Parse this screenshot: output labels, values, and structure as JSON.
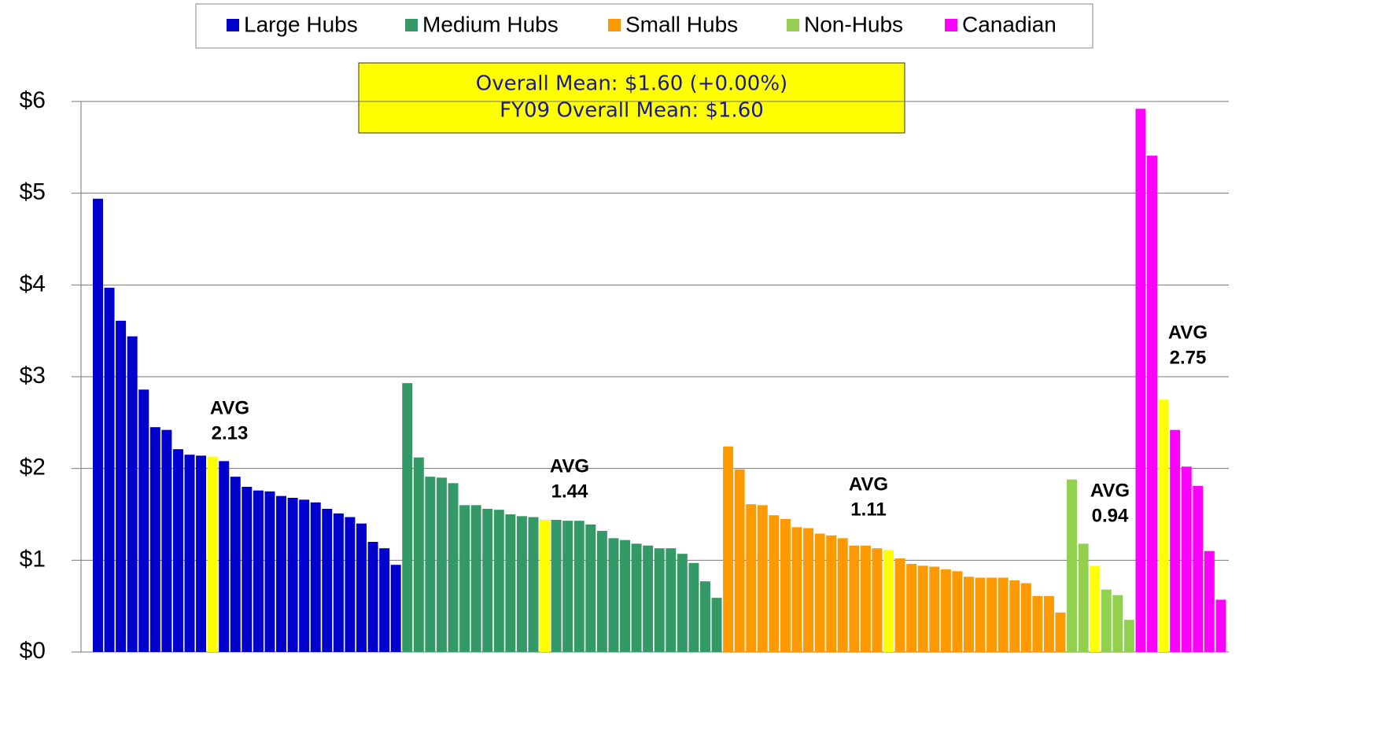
{
  "chart_data": {
    "type": "bar",
    "annotations": [
      "Overall Mean: $1.60 (+0.00%)",
      "FY09 Overall Mean: $1.60"
    ],
    "average_label": "AVG",
    "average_color": "#ffff00",
    "ylim": [
      0,
      6
    ],
    "yticks": [
      {
        "value": 0,
        "label": "$0"
      },
      {
        "value": 1,
        "label": "$1"
      },
      {
        "value": 2,
        "label": "$2"
      },
      {
        "value": 3,
        "label": "$3"
      },
      {
        "value": 4,
        "label": "$4"
      },
      {
        "value": 5,
        "label": "$5"
      },
      {
        "value": 6,
        "label": "$6"
      }
    ],
    "grid": true,
    "series": [
      {
        "name": "Large Hubs",
        "color": "#0000cc",
        "average": 2.13,
        "values": [
          4.94,
          3.97,
          3.61,
          3.44,
          2.86,
          2.45,
          2.42,
          2.21,
          2.15,
          2.14,
          2.08,
          1.91,
          1.8,
          1.76,
          1.75,
          1.7,
          1.68,
          1.66,
          1.63,
          1.56,
          1.51,
          1.47,
          1.4,
          1.2,
          1.13,
          0.95
        ]
      },
      {
        "name": "Medium Hubs",
        "color": "#339966",
        "average": 1.44,
        "values": [
          2.93,
          2.12,
          1.91,
          1.9,
          1.84,
          1.6,
          1.6,
          1.56,
          1.55,
          1.5,
          1.48,
          1.47,
          1.44,
          1.43,
          1.43,
          1.39,
          1.32,
          1.24,
          1.22,
          1.18,
          1.16,
          1.13,
          1.13,
          1.07,
          0.97,
          0.77,
          0.59
        ]
      },
      {
        "name": "Small Hubs",
        "color": "#ff9900",
        "average": 1.11,
        "values": [
          2.24,
          1.99,
          1.61,
          1.6,
          1.49,
          1.45,
          1.36,
          1.35,
          1.29,
          1.27,
          1.24,
          1.16,
          1.16,
          1.13,
          1.02,
          0.96,
          0.94,
          0.93,
          0.9,
          0.88,
          0.82,
          0.81,
          0.81,
          0.81,
          0.78,
          0.75,
          0.61,
          0.61,
          0.43
        ]
      },
      {
        "name": "Non-Hubs",
        "color": "#92d050",
        "average": 0.94,
        "values": [
          1.88,
          1.18,
          0.68,
          0.62,
          0.35
        ]
      },
      {
        "name": "Canadian",
        "color": "#ff00ff",
        "average": 2.75,
        "values": [
          5.92,
          5.41,
          2.42,
          2.02,
          1.81,
          1.1,
          0.57
        ]
      }
    ]
  }
}
